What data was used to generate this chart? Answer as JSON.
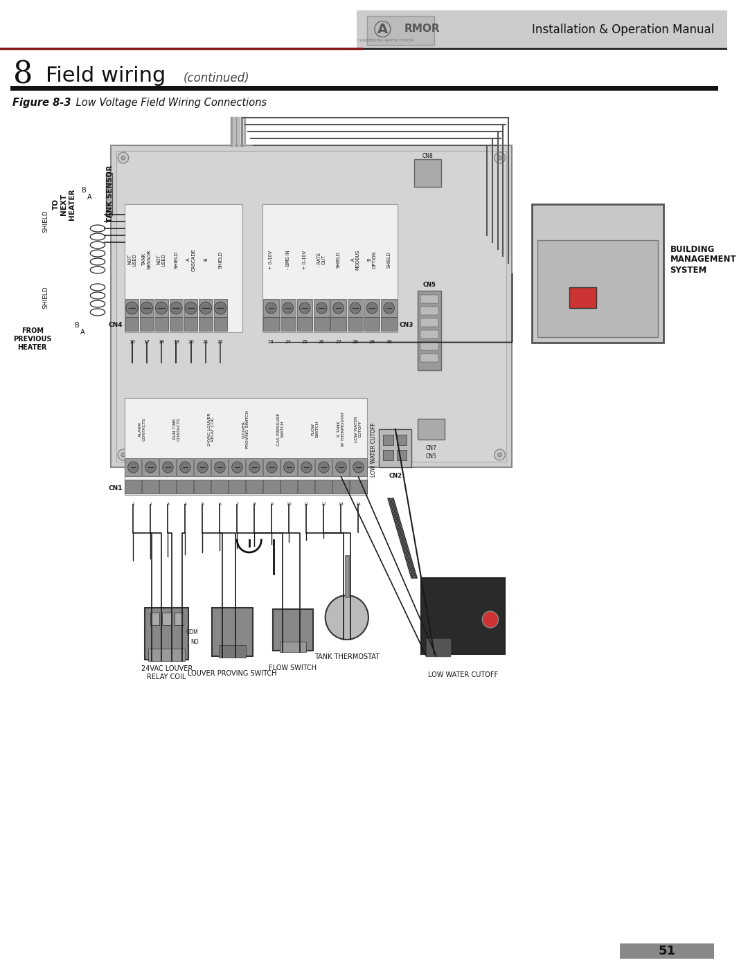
{
  "page_width": 10.8,
  "page_height": 13.97,
  "bg_color": "#ffffff",
  "header_bg": "#cccccc",
  "header_text": "Installation & Operation Manual",
  "section_number": "8",
  "section_title": "Field wiring",
  "section_subtitle": "(continued)",
  "figure_label": "Figure 8-3",
  "figure_caption": " Low Voltage Field Wiring Connections",
  "page_number": "51",
  "panel_fill": "#d2d2d2",
  "panel_border": "#888888",
  "terminal_fill": "#c0c0c0",
  "terminal_screw_fill": "#888888",
  "cn4_labels": [
    "NOT USED",
    "TANK\nSENSOR",
    "NOT USED",
    "SHIELD",
    "A\nCASCADE",
    "B",
    "SHIELD"
  ],
  "cn3_labels": [
    "+ 0-10V",
    "- BMS IN",
    "+ 0-10V",
    "- RATE OUT",
    "SHIELD",
    "A MODBUS",
    "B\nOPTION",
    "SHIELD"
  ],
  "cn1_labels": [
    "ALARM\nCONTACTS",
    "RUN TIME\nCONTACTS",
    "24VAC LOUVER\nRELAY COIL",
    "LOUVER\nPROVING SWITCH",
    "GAS PRESSURE\nSWITCH",
    "FLOW\nSWITCH",
    "R TANK\nW THERMOSTAT",
    "LOW WATER CUTOFF"
  ],
  "building_mgmt": [
    "BUILDING",
    "MANAGEMENT",
    "SYSTEM"
  ],
  "bottom_device_labels": [
    "24VAC LOUVER\nRELAY COIL",
    "LOUVER PROVING SWITCH",
    "FLOW SWITCH",
    "TANK THERMOSTAT",
    "LOW WATER CUTOFF"
  ]
}
